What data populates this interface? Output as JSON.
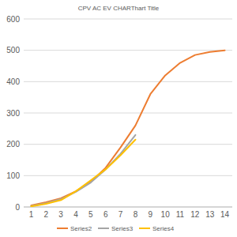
{
  "chart_data": {
    "type": "line",
    "title": "CPV AC EV CHARThart Title",
    "categories": [
      "1",
      "2",
      "3",
      "4",
      "5",
      "6",
      "7",
      "8",
      "9",
      "10",
      "11",
      "12",
      "13",
      "14"
    ],
    "series": [
      {
        "name": "Series2",
        "color": "#ed7d31",
        "values": [
          5,
          15,
          28,
          50,
          80,
          125,
          190,
          260,
          360,
          420,
          460,
          485,
          495,
          500
        ]
      },
      {
        "name": "Series3",
        "color": "#a5a5a5",
        "values": [
          3,
          12,
          25,
          48,
          78,
          120,
          170,
          230,
          null,
          null,
          null,
          null,
          null,
          null
        ]
      },
      {
        "name": "Series4",
        "color": "#ffc000",
        "values": [
          2,
          10,
          22,
          50,
          85,
          120,
          165,
          215,
          null,
          null,
          null,
          null,
          null,
          null
        ]
      }
    ],
    "ylim": [
      0,
      600
    ],
    "yticks": [
      0,
      100,
      200,
      300,
      400,
      500,
      600
    ],
    "grid": true,
    "legend": "bottom"
  }
}
